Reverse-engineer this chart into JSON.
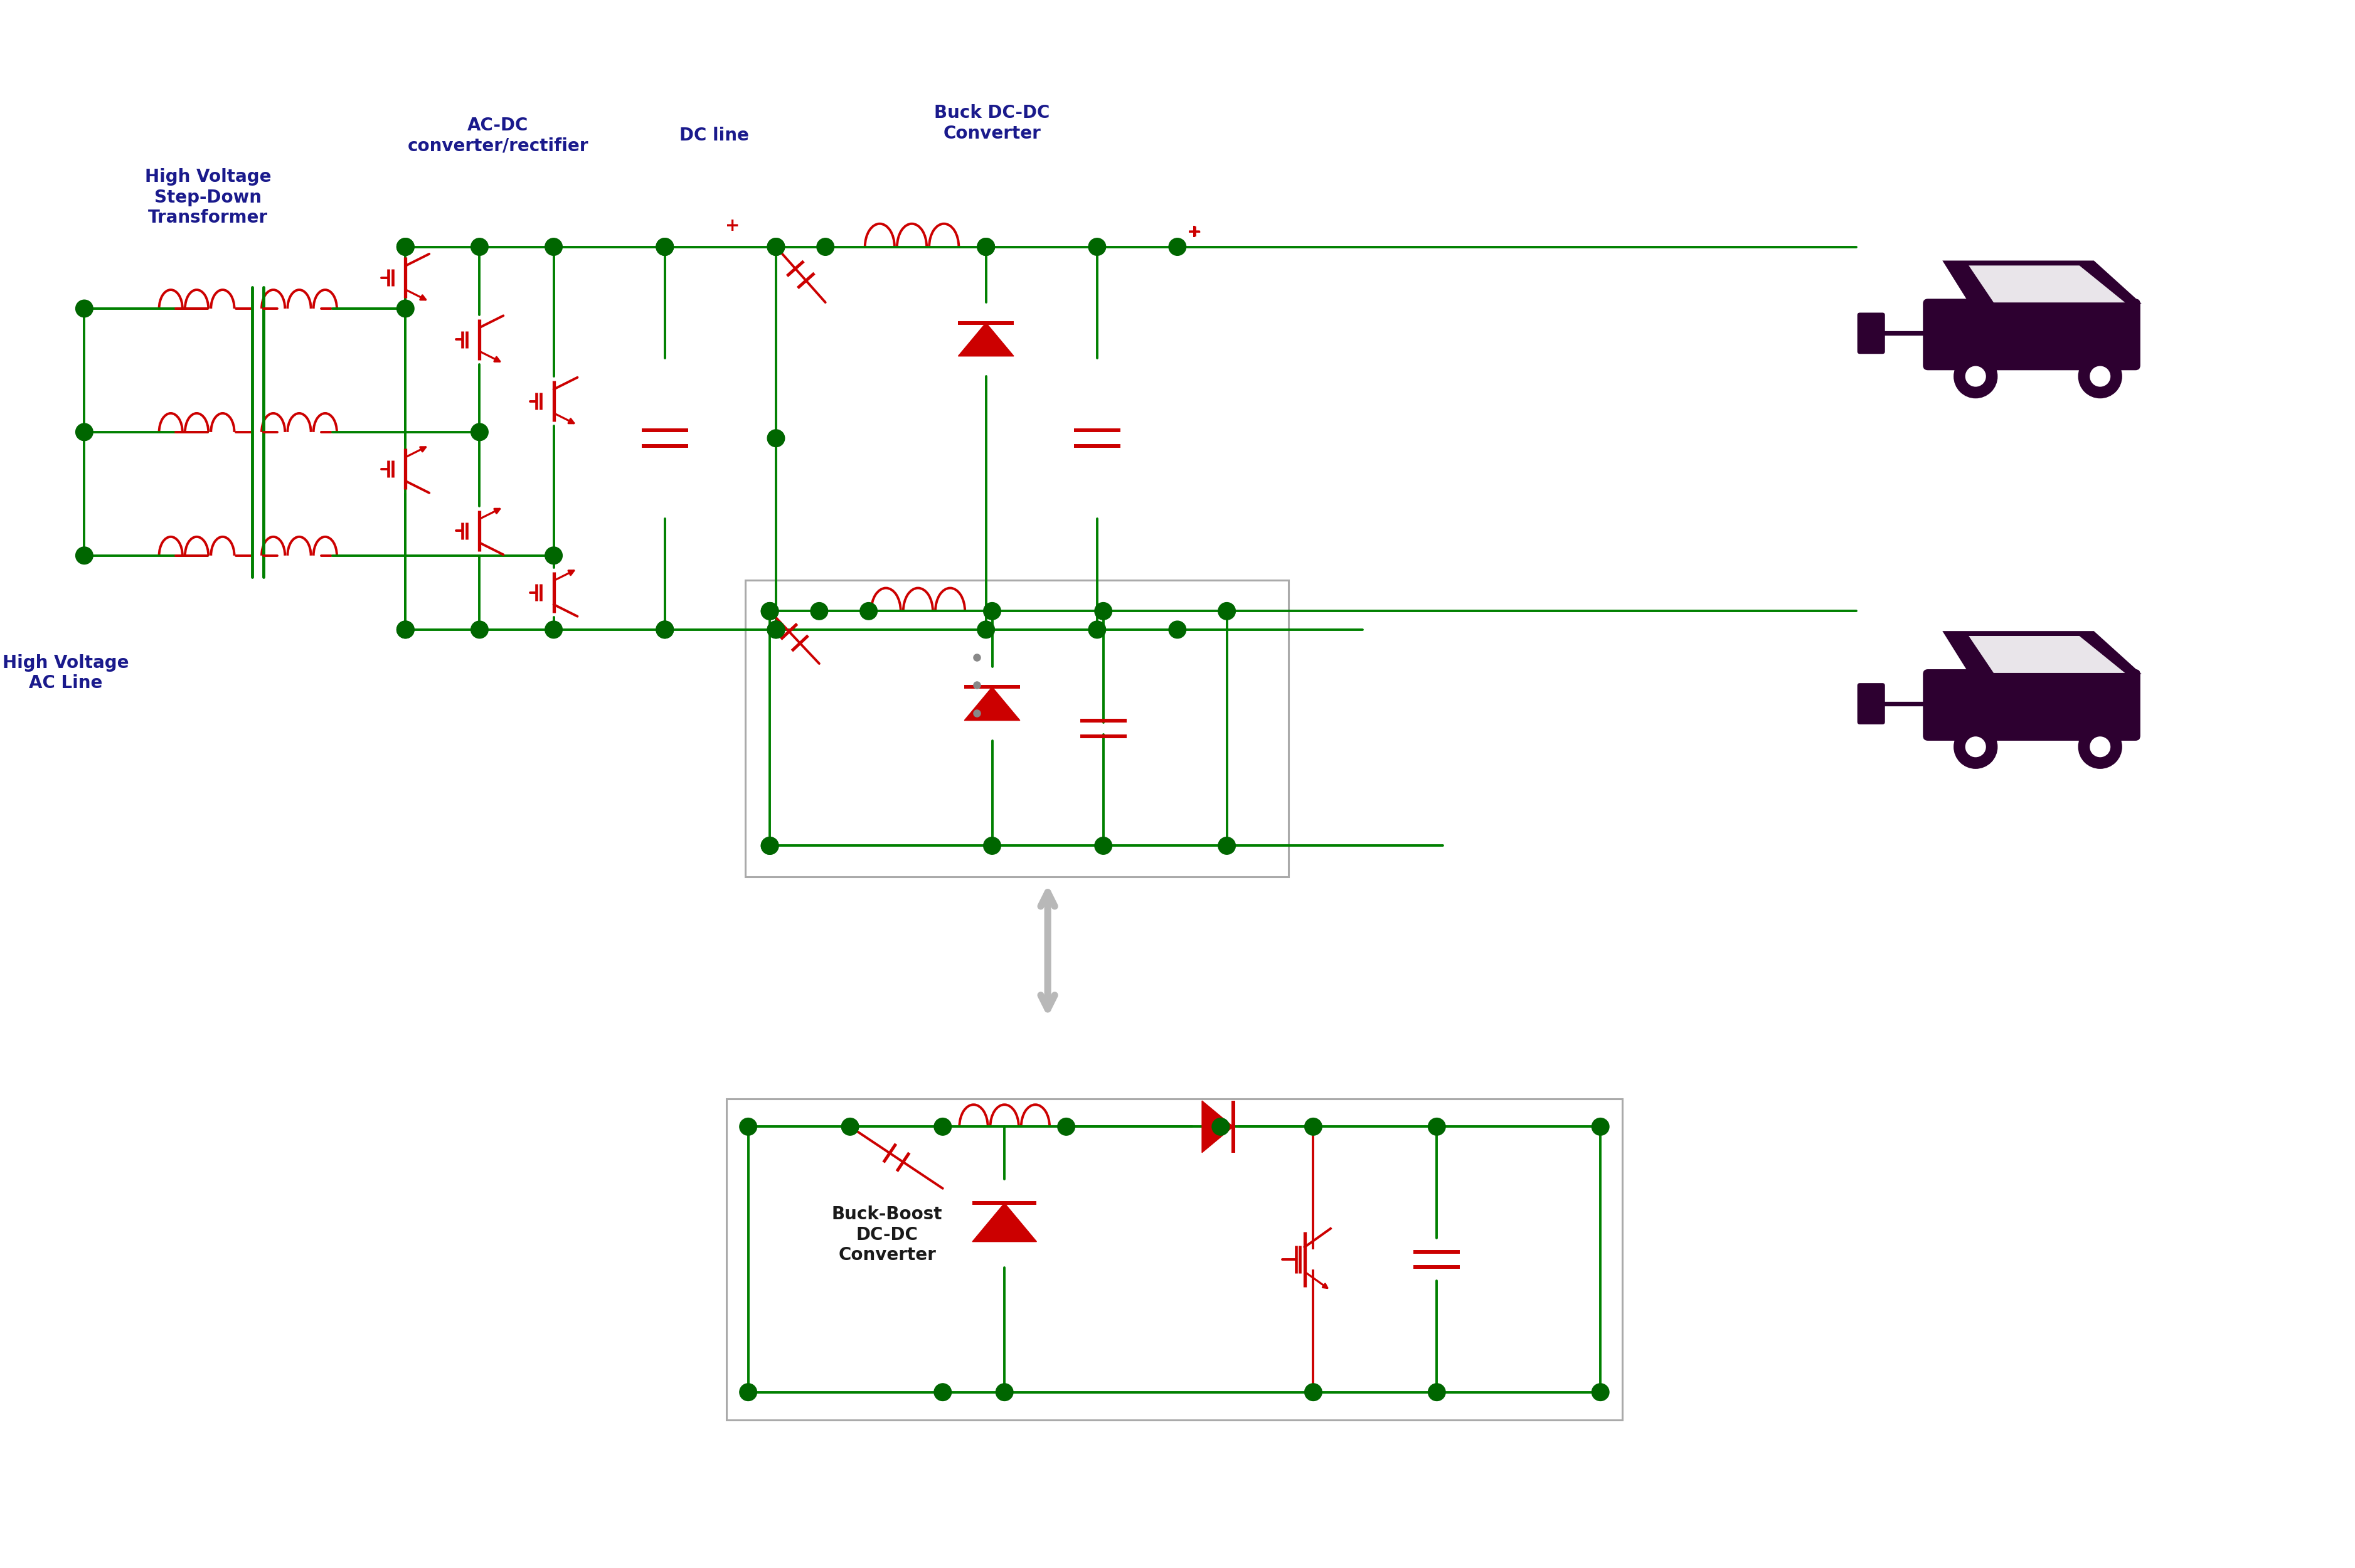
{
  "figure_width": 37.55,
  "figure_height": 25.0,
  "bg": "#ffffff",
  "G": "#008000",
  "R": "#cc0000",
  "GN": "#006600",
  "LC": "#1a1a8c",
  "BOX": "#aaaaaa",
  "CAR": "#2d0030",
  "LW": 2.8,
  "NR": 0.14,
  "labels": {
    "ac_dc": "AC-DC\nconverter/rectifier",
    "dc_line": "DC line",
    "buck": "Buck DC-DC\nConverter",
    "transformer": "High Voltage\nStep-Down\nTransformer",
    "ac_line": "High Voltage\nAC Line",
    "buck_boost": "Buck-Boost\nDC-DC\nConverter"
  }
}
